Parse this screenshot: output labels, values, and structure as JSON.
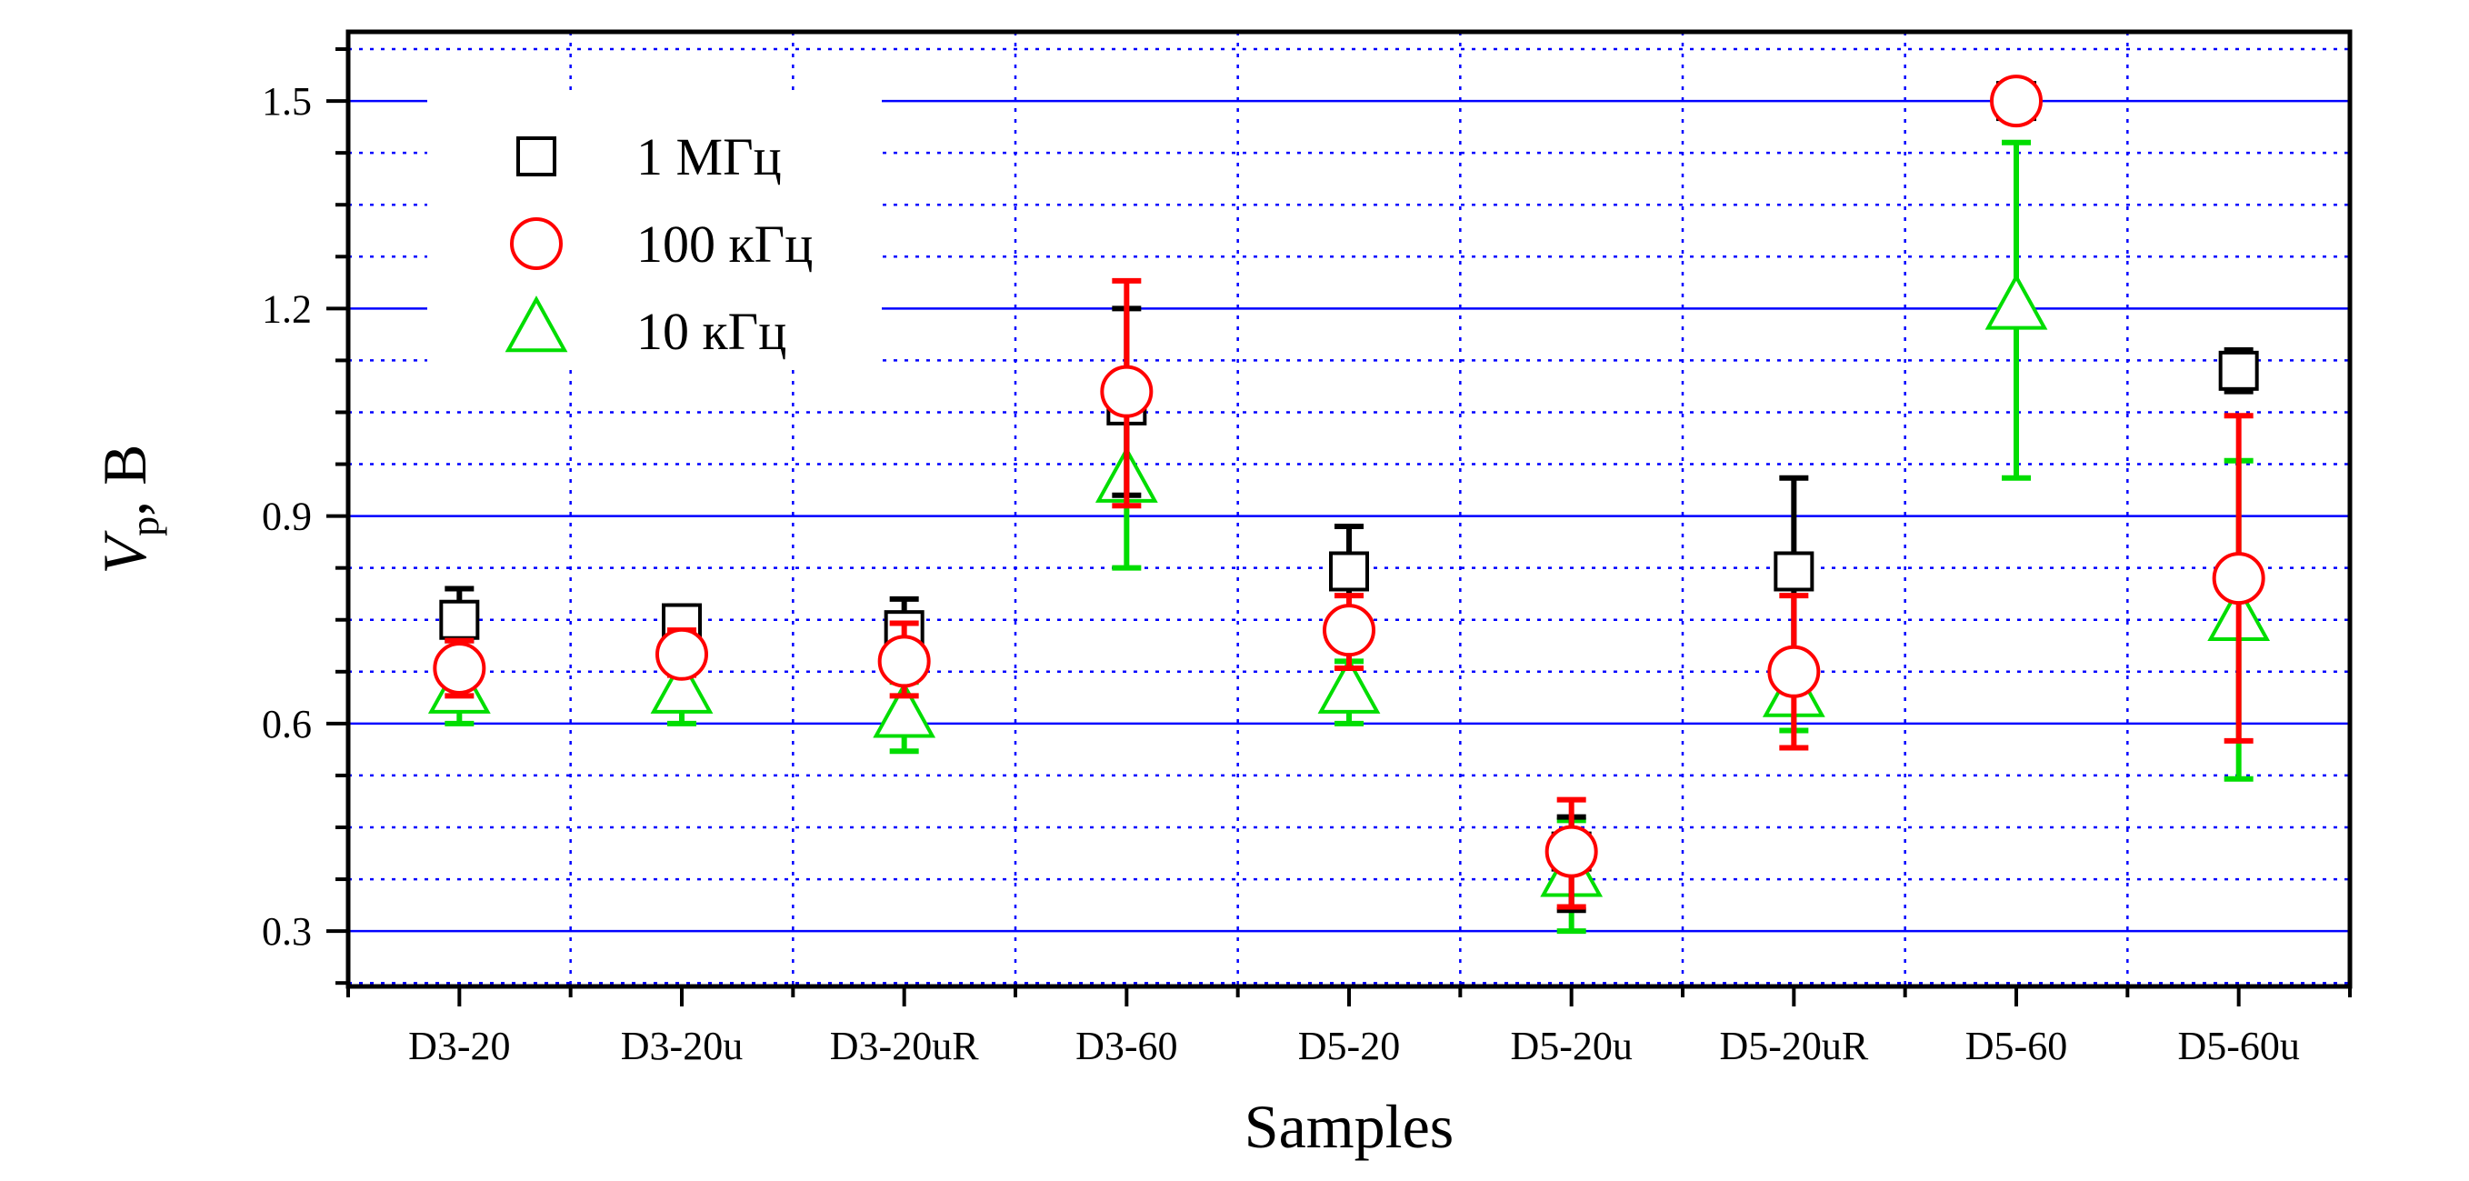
{
  "chart_data": {
    "type": "scatter",
    "title": "",
    "xlabel": "Samples",
    "ylabel_main": "V",
    "ylabel_sub": "p",
    "ylabel_rest": ", В",
    "categories": [
      "D3-20",
      "D3-20u",
      "D3-20uR",
      "D3-60",
      "D5-20",
      "D5-20u",
      "D5-20uR",
      "D5-60",
      "D5-60u"
    ],
    "ylim": [
      0.22,
      1.6
    ],
    "yticks": [
      0.3,
      0.6,
      0.9,
      1.2,
      1.5
    ],
    "ytick_labels": [
      "0.3",
      "0.6",
      "0.9",
      "1.2",
      "1.5"
    ],
    "grid": true,
    "legend_position": "top-left",
    "series": [
      {
        "name": "1 МГц",
        "marker": "square",
        "color": "#000000",
        "values": [
          0.75,
          0.745,
          0.735,
          1.06,
          0.82,
          0.415,
          0.82,
          1.5,
          1.11
        ],
        "err_low": [
          0.72,
          0.72,
          0.69,
          0.93,
          0.76,
          0.33,
          0.68,
          1.48,
          1.08
        ],
        "err_high": [
          0.795,
          0.77,
          0.78,
          1.2,
          0.885,
          0.465,
          0.955,
          1.52,
          1.14
        ]
      },
      {
        "name": "100 кГц",
        "marker": "circle",
        "color": "#ff0000",
        "values": [
          0.68,
          0.7,
          0.69,
          1.08,
          0.735,
          0.415,
          0.675,
          1.5,
          0.81
        ],
        "err_low": [
          0.64,
          0.67,
          0.64,
          0.915,
          0.68,
          0.335,
          0.565,
          1.48,
          0.575
        ],
        "err_high": [
          0.72,
          0.735,
          0.745,
          1.24,
          0.785,
          0.49,
          0.785,
          1.52,
          1.045
        ]
      },
      {
        "name": "10 кГц",
        "marker": "triangle",
        "color": "#00dd00",
        "values": [
          0.645,
          0.645,
          0.61,
          0.95,
          0.645,
          0.38,
          0.64,
          1.2,
          0.75
        ],
        "err_low": [
          0.6,
          0.6,
          0.56,
          0.825,
          0.6,
          0.3,
          0.59,
          0.955,
          0.52
        ],
        "err_high": [
          0.69,
          0.69,
          0.66,
          1.07,
          0.69,
          0.46,
          0.69,
          1.44,
          0.98
        ]
      }
    ]
  }
}
